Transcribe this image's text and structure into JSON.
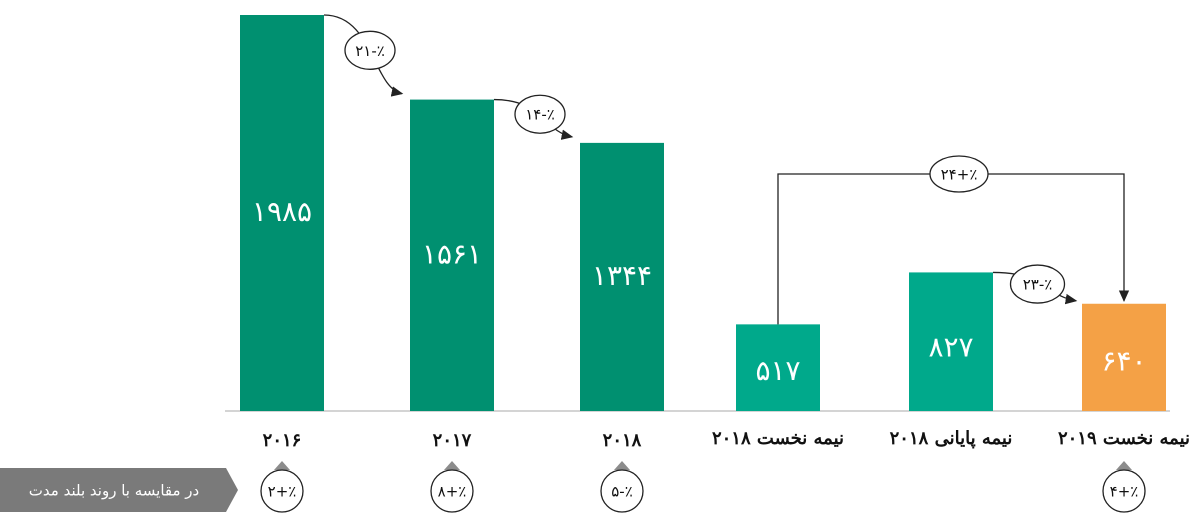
{
  "colors": {
    "green": "#009070",
    "teal": "#00a98b",
    "orange": "#f4a146",
    "banner": "#7a7a7a"
  },
  "chart_data": [
    {
      "type": "bar",
      "categories": [
        "۲۰۱۶",
        "۲۰۱۷",
        "۲۰۱۸"
      ],
      "values": [
        1985,
        1561,
        1344
      ],
      "value_labels": [
        "۱۹۸۵",
        "۱۵۶۱",
        "۱۳۴۴"
      ],
      "changes": [
        "٪-۲۱",
        "٪-۱۴"
      ],
      "long_term_changes": [
        "٪+۲",
        "٪+۸",
        "٪-۵"
      ],
      "long_term_caption": "در مقایسه با روند بلند مدت",
      "ylim": [
        0,
        2000
      ],
      "grid": false
    },
    {
      "type": "bar",
      "categories": [
        "نیمه نخست ۲۰۱۸",
        "نیمه پایانی ۲۰۱۸",
        "نیمه نخست ۲۰۱۹"
      ],
      "values": [
        517,
        827,
        640
      ],
      "value_labels": [
        "۵۱۷",
        "۸۲۷",
        "۶۴۰"
      ],
      "changes": [
        "٪-۲۳"
      ],
      "bracket_change": "٪+۲۴",
      "long_term_changes": [
        "٪+۴"
      ],
      "highlight_index": 2,
      "ylim": [
        0,
        1000
      ],
      "grid": false
    }
  ]
}
